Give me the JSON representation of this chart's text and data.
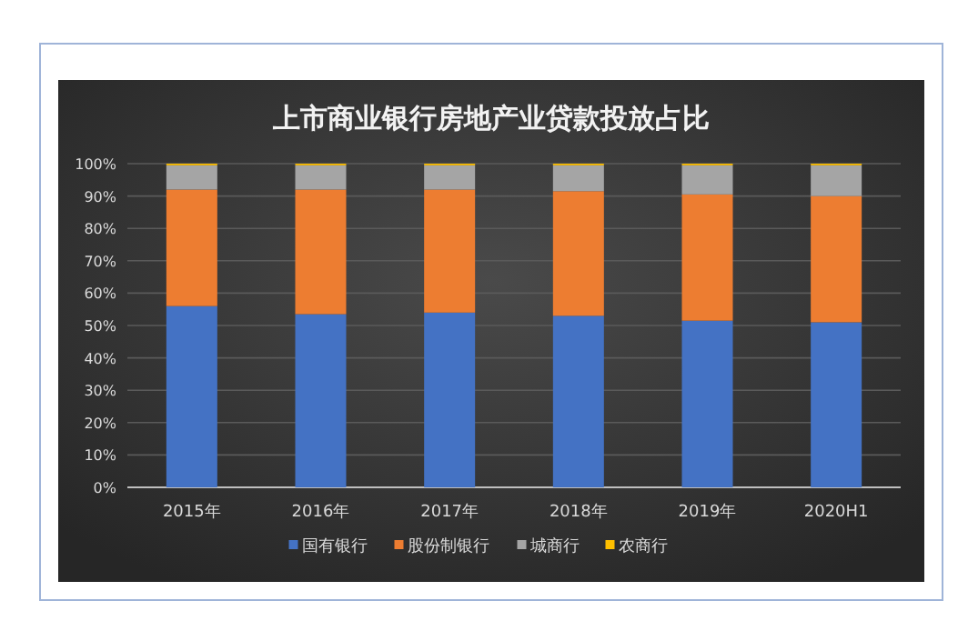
{
  "chart_data": {
    "type": "bar",
    "stacked": true,
    "title": "上市商业银行房地产业贷款投放占比",
    "categories": [
      "2015年",
      "2016年",
      "2017年",
      "2018年",
      "2019年",
      "2020H1"
    ],
    "series": [
      {
        "name": "国有银行",
        "color": "#4472c4",
        "values": [
          56,
          53.5,
          54,
          53,
          51.5,
          51
        ]
      },
      {
        "name": "股份制银行",
        "color": "#ed7d31",
        "values": [
          36,
          38.5,
          38,
          38.5,
          39,
          39
        ]
      },
      {
        "name": "城商行",
        "color": "#a5a5a5",
        "values": [
          7.5,
          7.5,
          7.5,
          8,
          9,
          9.5
        ]
      },
      {
        "name": "农商行",
        "color": "#ffc000",
        "values": [
          0.5,
          0.5,
          0.5,
          0.5,
          0.5,
          0.5
        ]
      }
    ],
    "ylim": [
      0,
      100
    ],
    "yticks": [
      {
        "value": 0,
        "label": "0%"
      },
      {
        "value": 10,
        "label": "10%"
      },
      {
        "value": 20,
        "label": "20%"
      },
      {
        "value": 30,
        "label": "30%"
      },
      {
        "value": 40,
        "label": "40%"
      },
      {
        "value": 50,
        "label": "50%"
      },
      {
        "value": 60,
        "label": "60%"
      },
      {
        "value": 70,
        "label": "70%"
      },
      {
        "value": 80,
        "label": "80%"
      },
      {
        "value": 90,
        "label": "90%"
      },
      {
        "value": 100,
        "label": "100%"
      }
    ],
    "grid": "y",
    "legend": "bottom"
  }
}
